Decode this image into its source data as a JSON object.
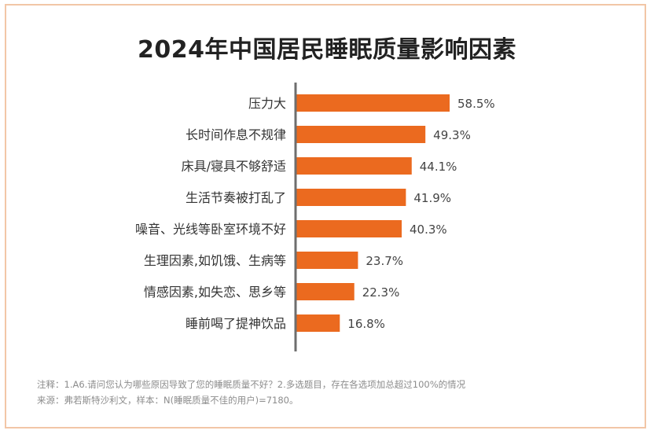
{
  "chart_data": {
    "type": "bar",
    "orientation": "horizontal",
    "title": "2024年中国居民睡眠质量影响因素",
    "categories": [
      "压力大",
      "长时间作息不规律",
      "床具/寝具不够舒适",
      "生活节奏被打乱了",
      "噪音、光线等卧室环境不好",
      "生理因素,如饥饿、生病等",
      "情感因素,如失恋、思乡等",
      "睡前喝了提神饮品"
    ],
    "values": [
      58.5,
      49.3,
      44.1,
      41.9,
      40.3,
      23.7,
      22.3,
      16.8
    ],
    "value_labels": [
      "58.5%",
      "49.3%",
      "44.1%",
      "41.9%",
      "40.3%",
      "23.7%",
      "22.3%",
      "16.8%"
    ],
    "unit": "%",
    "bar_color": "#eb6a1f",
    "axis_color": "#6e6e6e",
    "grid": false
  },
  "notes": {
    "line1": "注释：1.A6.请问您认为哪些原因导致了您的睡眠质量不好？2.多选题目，存在各选项加总超过100%的情况",
    "line2": "来源：弗若斯特沙利文，样本：N(睡眠质量不佳的用户)=7180。"
  }
}
